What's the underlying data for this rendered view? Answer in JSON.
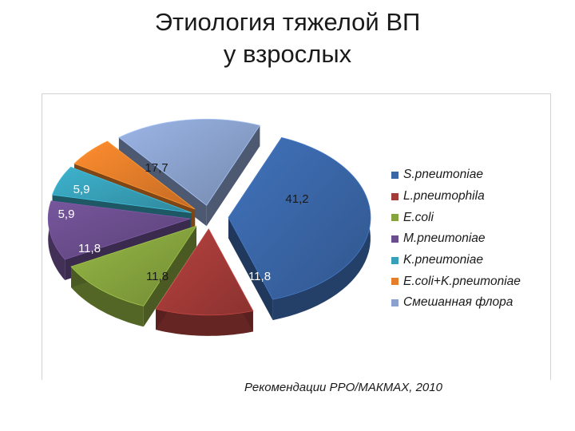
{
  "title": {
    "line1": "Этиология тяжелой ВП",
    "line2": "у взрослых"
  },
  "source_note": "Рекомендации РРО/МАКМАХ, 2010",
  "chart_data": {
    "type": "pie",
    "title": "",
    "exploded": true,
    "three_d": true,
    "legend_position": "right",
    "series": [
      {
        "categories": [
          "S.pneumoniae",
          "L.pneumophila",
          "E.coli",
          "M.pneumoniae",
          "K.pneumoniae",
          "E.coli+K.pneumoniae",
          "Смешанная флора"
        ],
        "values": [
          41.2,
          11.8,
          11.8,
          11.8,
          5.9,
          5.9,
          17.7
        ],
        "labels": [
          "41,2",
          "11,8",
          "11,8",
          "11,8",
          "5,9",
          "5,9",
          "17,7"
        ],
        "colors": [
          "#3A66A7",
          "#A33B38",
          "#86A43E",
          "#6A4D8C",
          "#37A0B8",
          "#E57E2A",
          "#8AA2CD"
        ]
      }
    ]
  }
}
